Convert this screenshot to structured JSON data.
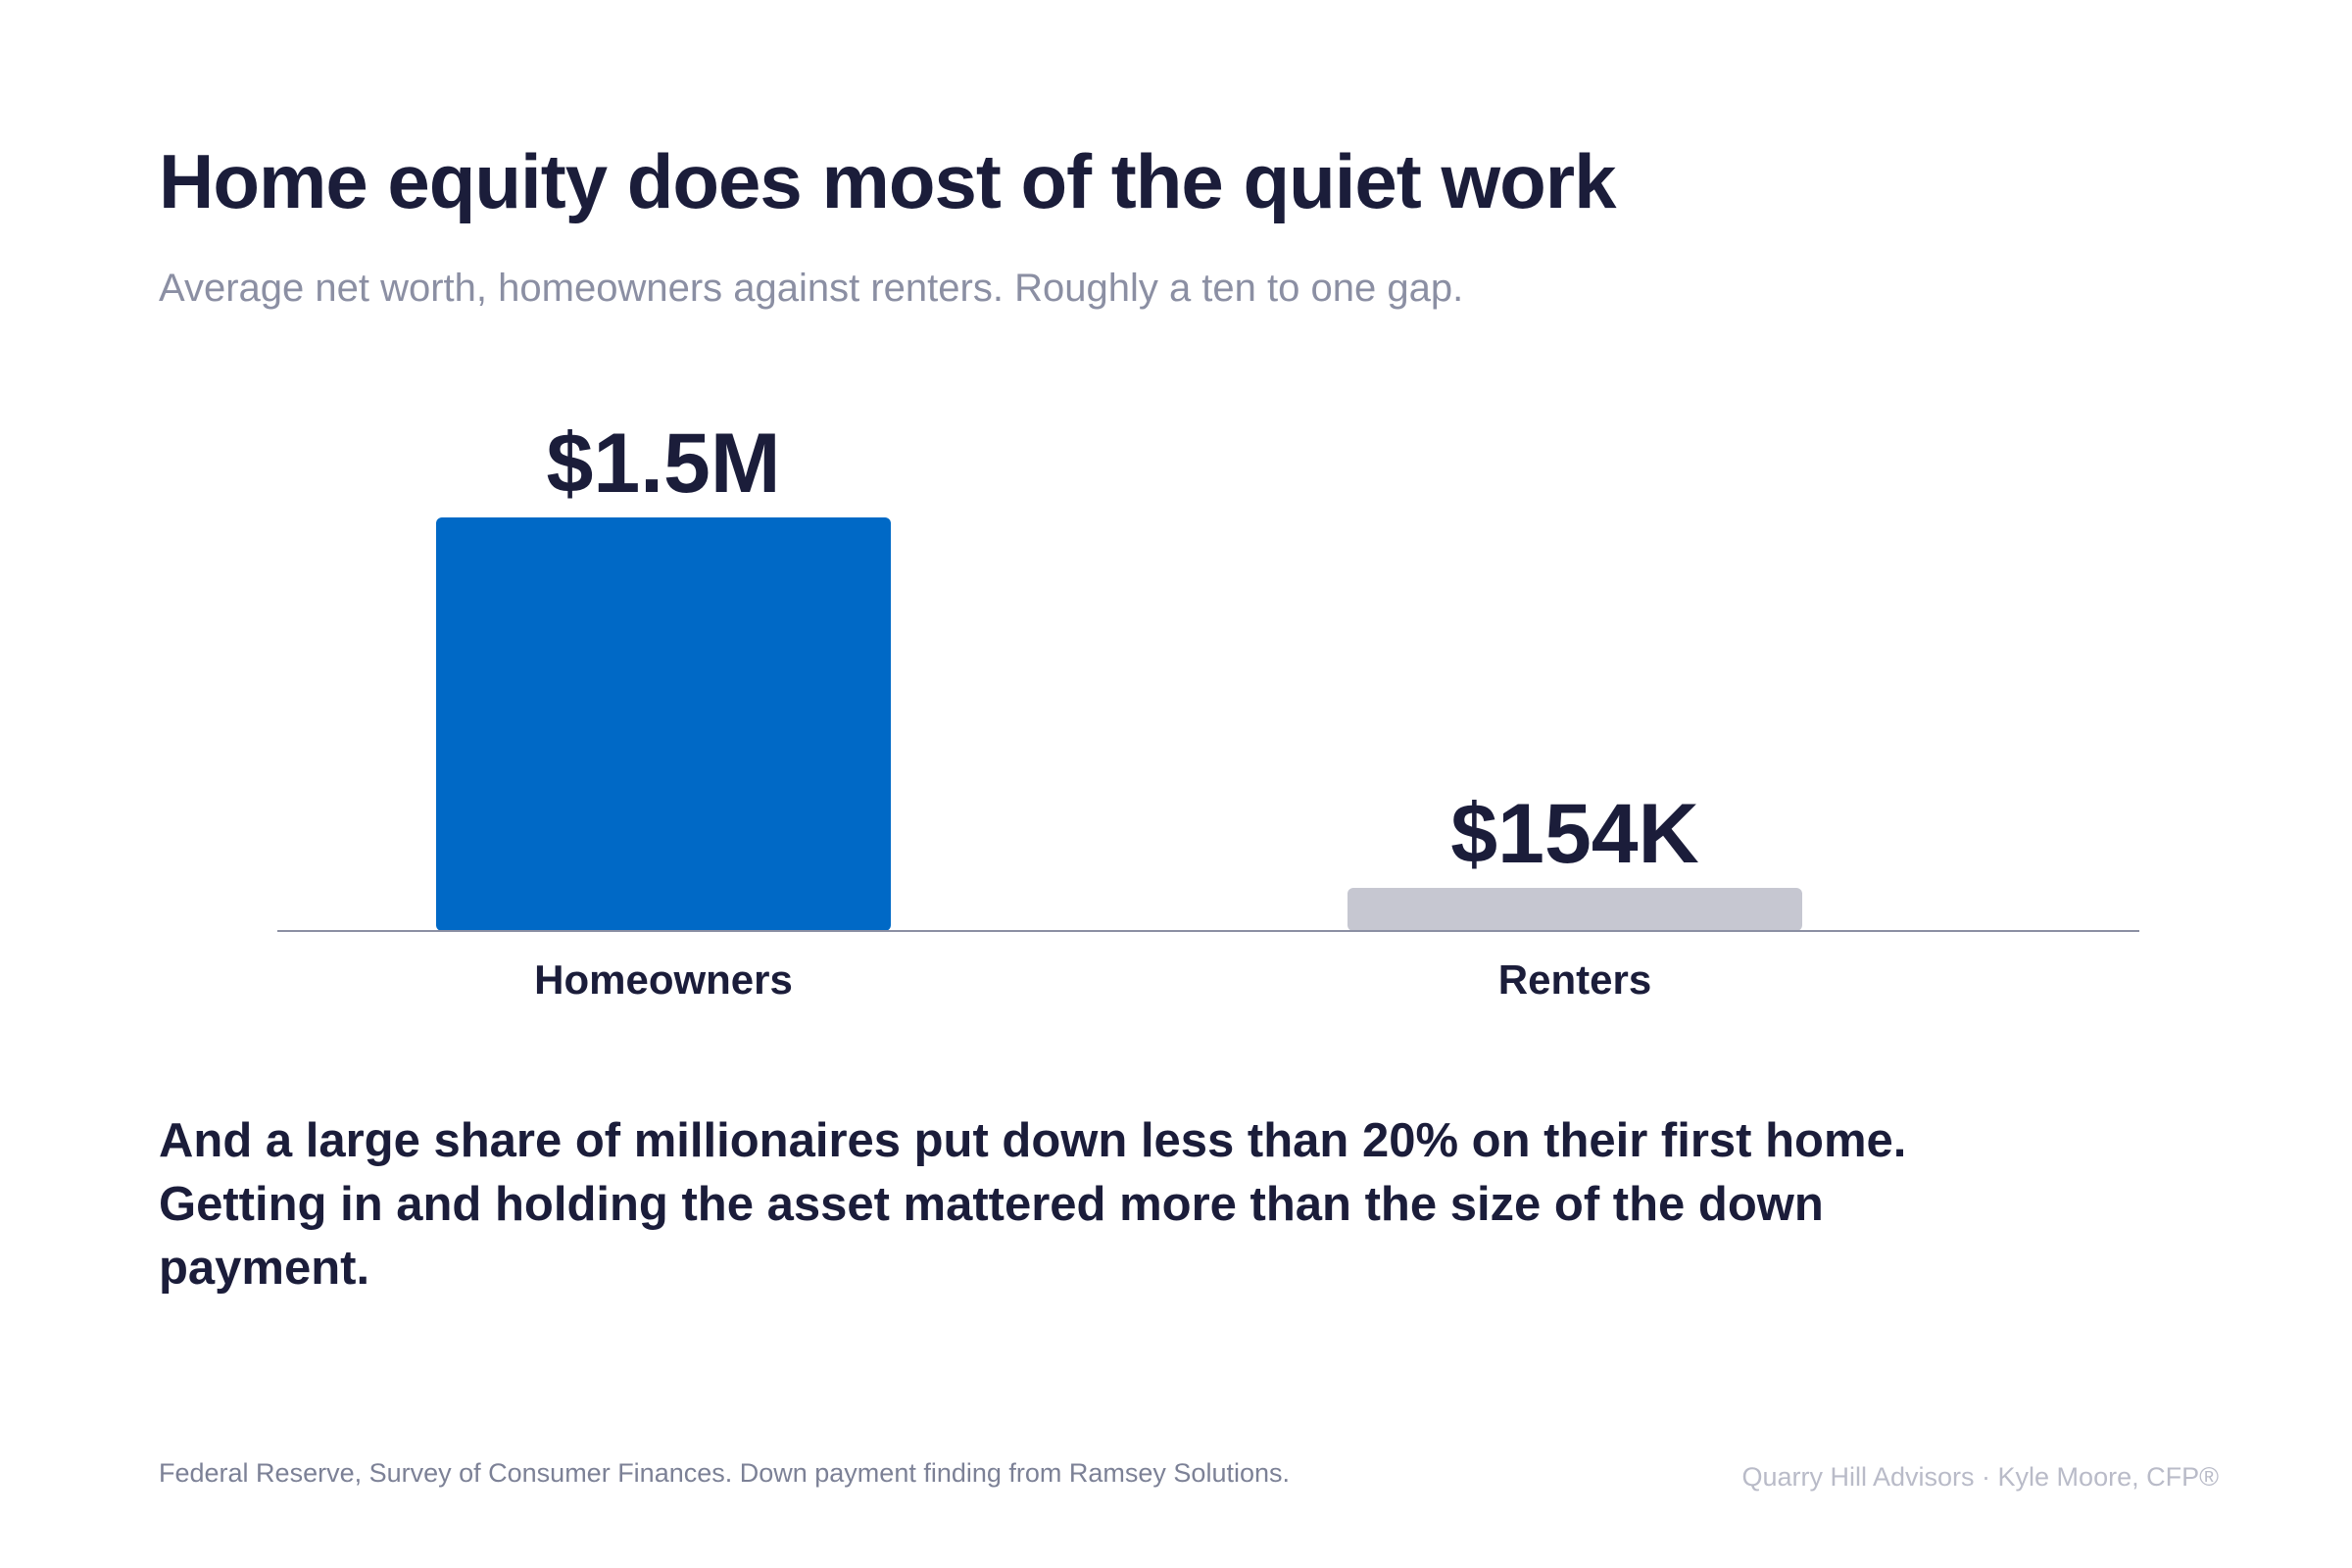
{
  "title": "Home equity does most of the quiet work",
  "subtitle": "Average net worth, homeowners against renters. Roughly a ten to one gap.",
  "chart_data": {
    "type": "bar",
    "categories": [
      "Homeowners",
      "Renters"
    ],
    "values": [
      1500000,
      154000
    ],
    "data_labels": [
      "$1.5M",
      "$154K"
    ],
    "ylim": [
      0,
      1500000
    ],
    "colors": [
      "#0069c6",
      "#c6c7d1"
    ],
    "grid": false,
    "legend": "none"
  },
  "takeaway": "And a large share of millionaires put down less than 20% on their first home. Getting in and holding the asset mattered more than the size of the down payment.",
  "source": "Federal Reserve, Survey of Consumer Finances. Down payment finding from Ramsey Solutions.",
  "credit": "Quarry Hill Advisors · Kyle Moore, CFP®"
}
